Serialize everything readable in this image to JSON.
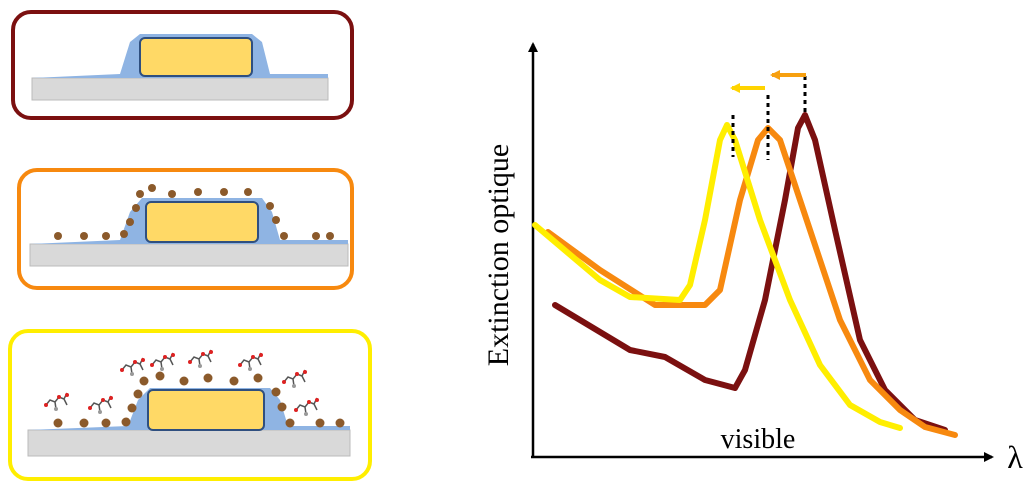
{
  "plot": {
    "y_label": "Extinction optique",
    "x_label": "λ",
    "annotation": "visible"
  }
}
